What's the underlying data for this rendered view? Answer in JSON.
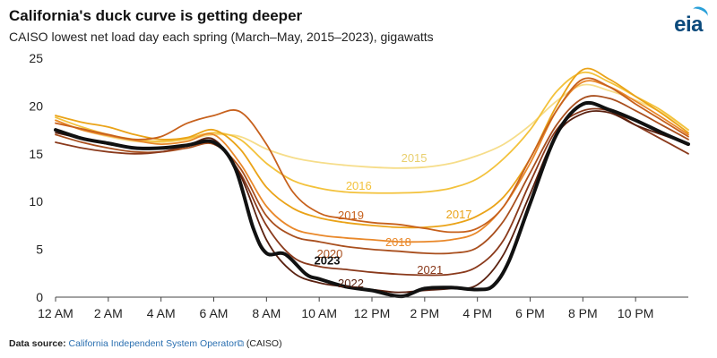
{
  "header": {
    "title": "California's duck curve is getting deeper",
    "subtitle": "CAISO lowest net load day each spring (March–May, 2015–2023), gigawatts",
    "logo_text": "eia"
  },
  "source": {
    "label": "Data source:",
    "link_text": "California Independent System Operator",
    "link_icon": "external-link-icon",
    "suffix": " (CAISO)"
  },
  "chart_data": {
    "type": "line",
    "title": "California's duck curve is getting deeper",
    "subtitle": "CAISO lowest net load day each spring (March–May, 2015–2023), gigawatts",
    "xlabel": "",
    "ylabel": "",
    "xlim": [
      0,
      24
    ],
    "ylim": [
      0,
      25
    ],
    "grid": false,
    "legend": "inline labels",
    "x_ticks": [
      {
        "x": 0,
        "label": "12 AM"
      },
      {
        "x": 2,
        "label": "2 AM"
      },
      {
        "x": 4,
        "label": "4 AM"
      },
      {
        "x": 6,
        "label": "6 AM"
      },
      {
        "x": 8,
        "label": "8 AM"
      },
      {
        "x": 10,
        "label": "10 AM"
      },
      {
        "x": 12,
        "label": "12 PM"
      },
      {
        "x": 14,
        "label": "2 PM"
      },
      {
        "x": 16,
        "label": "4 PM"
      },
      {
        "x": 18,
        "label": "6 PM"
      },
      {
        "x": 20,
        "label": "8 PM"
      },
      {
        "x": 22,
        "label": "10 PM"
      }
    ],
    "y_ticks": [
      0,
      5,
      10,
      15,
      20,
      25
    ],
    "series": [
      {
        "name": "2015",
        "color": "#f6dd8a",
        "bold": false,
        "label_at": [
          13.6,
          14.6
        ],
        "points": [
          [
            0,
            18.5
          ],
          [
            1,
            17.5
          ],
          [
            2,
            16.8
          ],
          [
            3,
            16.3
          ],
          [
            4,
            16.2
          ],
          [
            5,
            16.5
          ],
          [
            6,
            17.0
          ],
          [
            7,
            16.8
          ],
          [
            8,
            15.5
          ],
          [
            9,
            14.6
          ],
          [
            10,
            14.1
          ],
          [
            11,
            13.8
          ],
          [
            12,
            13.6
          ],
          [
            13,
            13.5
          ],
          [
            14,
            13.6
          ],
          [
            15,
            14.0
          ],
          [
            16,
            14.8
          ],
          [
            17,
            16.0
          ],
          [
            18,
            18.0
          ],
          [
            19,
            20.5
          ],
          [
            20,
            22.2
          ],
          [
            21,
            21.6
          ],
          [
            22,
            20.6
          ],
          [
            23,
            19.3
          ],
          [
            24,
            17.5
          ]
        ]
      },
      {
        "name": "2016",
        "color": "#f3c23c",
        "bold": false,
        "label_at": [
          11.5,
          11.7
        ],
        "points": [
          [
            0,
            18.8
          ],
          [
            1,
            17.8
          ],
          [
            2,
            17.0
          ],
          [
            3,
            16.5
          ],
          [
            4,
            16.3
          ],
          [
            5,
            16.6
          ],
          [
            6,
            17.2
          ],
          [
            7,
            16.5
          ],
          [
            8,
            14.0
          ],
          [
            9,
            12.2
          ],
          [
            10,
            11.4
          ],
          [
            11,
            11.0
          ],
          [
            12,
            10.9
          ],
          [
            13,
            10.9
          ],
          [
            14,
            11.0
          ],
          [
            15,
            11.4
          ],
          [
            16,
            12.4
          ],
          [
            17,
            14.5
          ],
          [
            18,
            17.5
          ],
          [
            19,
            21.5
          ],
          [
            20,
            23.5
          ],
          [
            21,
            22.5
          ],
          [
            22,
            21.0
          ],
          [
            23,
            19.5
          ],
          [
            24,
            17.5
          ]
        ]
      },
      {
        "name": "2017",
        "color": "#eaa318",
        "bold": false,
        "label_at": [
          15.3,
          8.7
        ],
        "points": [
          [
            0,
            19.0
          ],
          [
            1,
            18.3
          ],
          [
            2,
            17.8
          ],
          [
            3,
            17.0
          ],
          [
            4,
            16.5
          ],
          [
            5,
            16.7
          ],
          [
            6,
            17.5
          ],
          [
            7,
            15.5
          ],
          [
            8,
            11.5
          ],
          [
            9,
            9.3
          ],
          [
            10,
            8.3
          ],
          [
            11,
            7.8
          ],
          [
            12,
            7.5
          ],
          [
            13,
            7.3
          ],
          [
            14,
            7.3
          ],
          [
            15,
            7.6
          ],
          [
            16,
            8.5
          ],
          [
            17,
            10.5
          ],
          [
            18,
            14.5
          ],
          [
            19,
            20.0
          ],
          [
            20,
            23.8
          ],
          [
            21,
            22.8
          ],
          [
            22,
            21.0
          ],
          [
            23,
            19.2
          ],
          [
            24,
            17.2
          ]
        ]
      },
      {
        "name": "2018",
        "color": "#e9882a",
        "bold": false,
        "label_at": [
          13.0,
          5.8
        ],
        "points": [
          [
            0,
            18.5
          ],
          [
            1,
            17.5
          ],
          [
            2,
            16.9
          ],
          [
            3,
            16.4
          ],
          [
            4,
            16.0
          ],
          [
            5,
            16.3
          ],
          [
            6,
            17.0
          ],
          [
            7,
            14.0
          ],
          [
            8,
            9.5
          ],
          [
            9,
            7.2
          ],
          [
            10,
            6.5
          ],
          [
            11,
            6.2
          ],
          [
            12,
            6.0
          ],
          [
            13,
            5.8
          ],
          [
            14,
            5.8
          ],
          [
            15,
            6.0
          ],
          [
            16,
            6.8
          ],
          [
            17,
            9.5
          ],
          [
            18,
            14.0
          ],
          [
            19,
            19.5
          ],
          [
            20,
            22.5
          ],
          [
            21,
            22.0
          ],
          [
            22,
            20.5
          ],
          [
            23,
            18.8
          ],
          [
            24,
            17.0
          ]
        ]
      },
      {
        "name": "2019",
        "color": "#c7611d",
        "bold": false,
        "label_at": [
          11.2,
          8.6
        ],
        "points": [
          [
            0,
            18.2
          ],
          [
            1,
            17.6
          ],
          [
            2,
            17.0
          ],
          [
            3,
            16.5
          ],
          [
            4,
            16.8
          ],
          [
            5,
            18.2
          ],
          [
            6,
            19.0
          ],
          [
            7,
            19.4
          ],
          [
            8,
            16.0
          ],
          [
            9,
            11.0
          ],
          [
            10,
            8.8
          ],
          [
            11,
            8.2
          ],
          [
            12,
            7.8
          ],
          [
            13,
            7.6
          ],
          [
            14,
            7.2
          ],
          [
            15,
            6.8
          ],
          [
            16,
            7.2
          ],
          [
            17,
            9.5
          ],
          [
            18,
            14.5
          ],
          [
            19,
            19.5
          ],
          [
            20,
            22.8
          ],
          [
            21,
            22.0
          ],
          [
            22,
            20.2
          ],
          [
            23,
            18.5
          ],
          [
            24,
            16.8
          ]
        ]
      },
      {
        "name": "2020",
        "color": "#a94f1e",
        "bold": false,
        "label_at": [
          10.4,
          4.6
        ],
        "points": [
          [
            0,
            17.0
          ],
          [
            1,
            16.2
          ],
          [
            2,
            15.6
          ],
          [
            3,
            15.2
          ],
          [
            4,
            15.2
          ],
          [
            5,
            15.6
          ],
          [
            6,
            16.0
          ],
          [
            7,
            13.5
          ],
          [
            8,
            8.5
          ],
          [
            9,
            6.4
          ],
          [
            10,
            5.8
          ],
          [
            11,
            5.3
          ],
          [
            12,
            5.0
          ],
          [
            13,
            4.8
          ],
          [
            14,
            4.6
          ],
          [
            15,
            4.6
          ],
          [
            16,
            5.2
          ],
          [
            17,
            8.0
          ],
          [
            18,
            13.0
          ],
          [
            19,
            18.0
          ],
          [
            20,
            20.8
          ],
          [
            21,
            20.8
          ],
          [
            22,
            19.5
          ],
          [
            23,
            18.0
          ],
          [
            24,
            16.5
          ]
        ]
      },
      {
        "name": "2021",
        "color": "#8a3a1c",
        "bold": false,
        "label_at": [
          14.2,
          2.9
        ],
        "points": [
          [
            0,
            16.2
          ],
          [
            1,
            15.6
          ],
          [
            2,
            15.2
          ],
          [
            3,
            15.0
          ],
          [
            4,
            15.2
          ],
          [
            5,
            15.8
          ],
          [
            6,
            16.2
          ],
          [
            7,
            13.0
          ],
          [
            8,
            7.5
          ],
          [
            9,
            4.2
          ],
          [
            10,
            3.2
          ],
          [
            11,
            2.9
          ],
          [
            12,
            2.6
          ],
          [
            13,
            2.4
          ],
          [
            14,
            2.3
          ],
          [
            15,
            2.4
          ],
          [
            16,
            3.2
          ],
          [
            17,
            6.0
          ],
          [
            18,
            12.0
          ],
          [
            19,
            17.5
          ],
          [
            20,
            19.5
          ],
          [
            21,
            19.5
          ],
          [
            22,
            18.0
          ],
          [
            23,
            16.5
          ],
          [
            24,
            15.0
          ]
        ]
      },
      {
        "name": "2022",
        "color": "#5a2110",
        "bold": false,
        "label_at": [
          11.2,
          1.5
        ],
        "points": [
          [
            0,
            17.2
          ],
          [
            1,
            16.6
          ],
          [
            2,
            16.0
          ],
          [
            3,
            15.6
          ],
          [
            4,
            15.6
          ],
          [
            5,
            15.9
          ],
          [
            6,
            16.5
          ],
          [
            7,
            12.8
          ],
          [
            8,
            6.0
          ],
          [
            9,
            2.6
          ],
          [
            10,
            1.5
          ],
          [
            11,
            1.1
          ],
          [
            12,
            0.8
          ],
          [
            13,
            0.5
          ],
          [
            14,
            0.7
          ],
          [
            15,
            0.9
          ],
          [
            16,
            1.3
          ],
          [
            17,
            4.5
          ],
          [
            18,
            10.8
          ],
          [
            19,
            17.0
          ],
          [
            20,
            19.2
          ],
          [
            21,
            19.3
          ],
          [
            22,
            18.0
          ],
          [
            23,
            17.0
          ],
          [
            24,
            16.0
          ]
        ]
      },
      {
        "name": "2023",
        "color": "#111111",
        "bold": true,
        "label_at": [
          10.3,
          3.9
        ],
        "points": [
          [
            0,
            17.5
          ],
          [
            1,
            16.6
          ],
          [
            2,
            16.1
          ],
          [
            3,
            15.6
          ],
          [
            4,
            15.6
          ],
          [
            5,
            15.9
          ],
          [
            6,
            16.2
          ],
          [
            6.8,
            13.6
          ],
          [
            7.5,
            7.2
          ],
          [
            8,
            4.6
          ],
          [
            8.7,
            4.5
          ],
          [
            9.5,
            2.4
          ],
          [
            10,
            1.9
          ],
          [
            11,
            1.1
          ],
          [
            12,
            0.7
          ],
          [
            12.6,
            0.3
          ],
          [
            13.2,
            0.1
          ],
          [
            14,
            0.9
          ],
          [
            15,
            1.0
          ],
          [
            16,
            0.8
          ],
          [
            16.6,
            1.2
          ],
          [
            17.2,
            3.8
          ],
          [
            18,
            9.8
          ],
          [
            19,
            17.0
          ],
          [
            20,
            20.2
          ],
          [
            21,
            19.6
          ],
          [
            22,
            18.5
          ],
          [
            23,
            17.2
          ],
          [
            24,
            16.0
          ]
        ]
      }
    ]
  }
}
